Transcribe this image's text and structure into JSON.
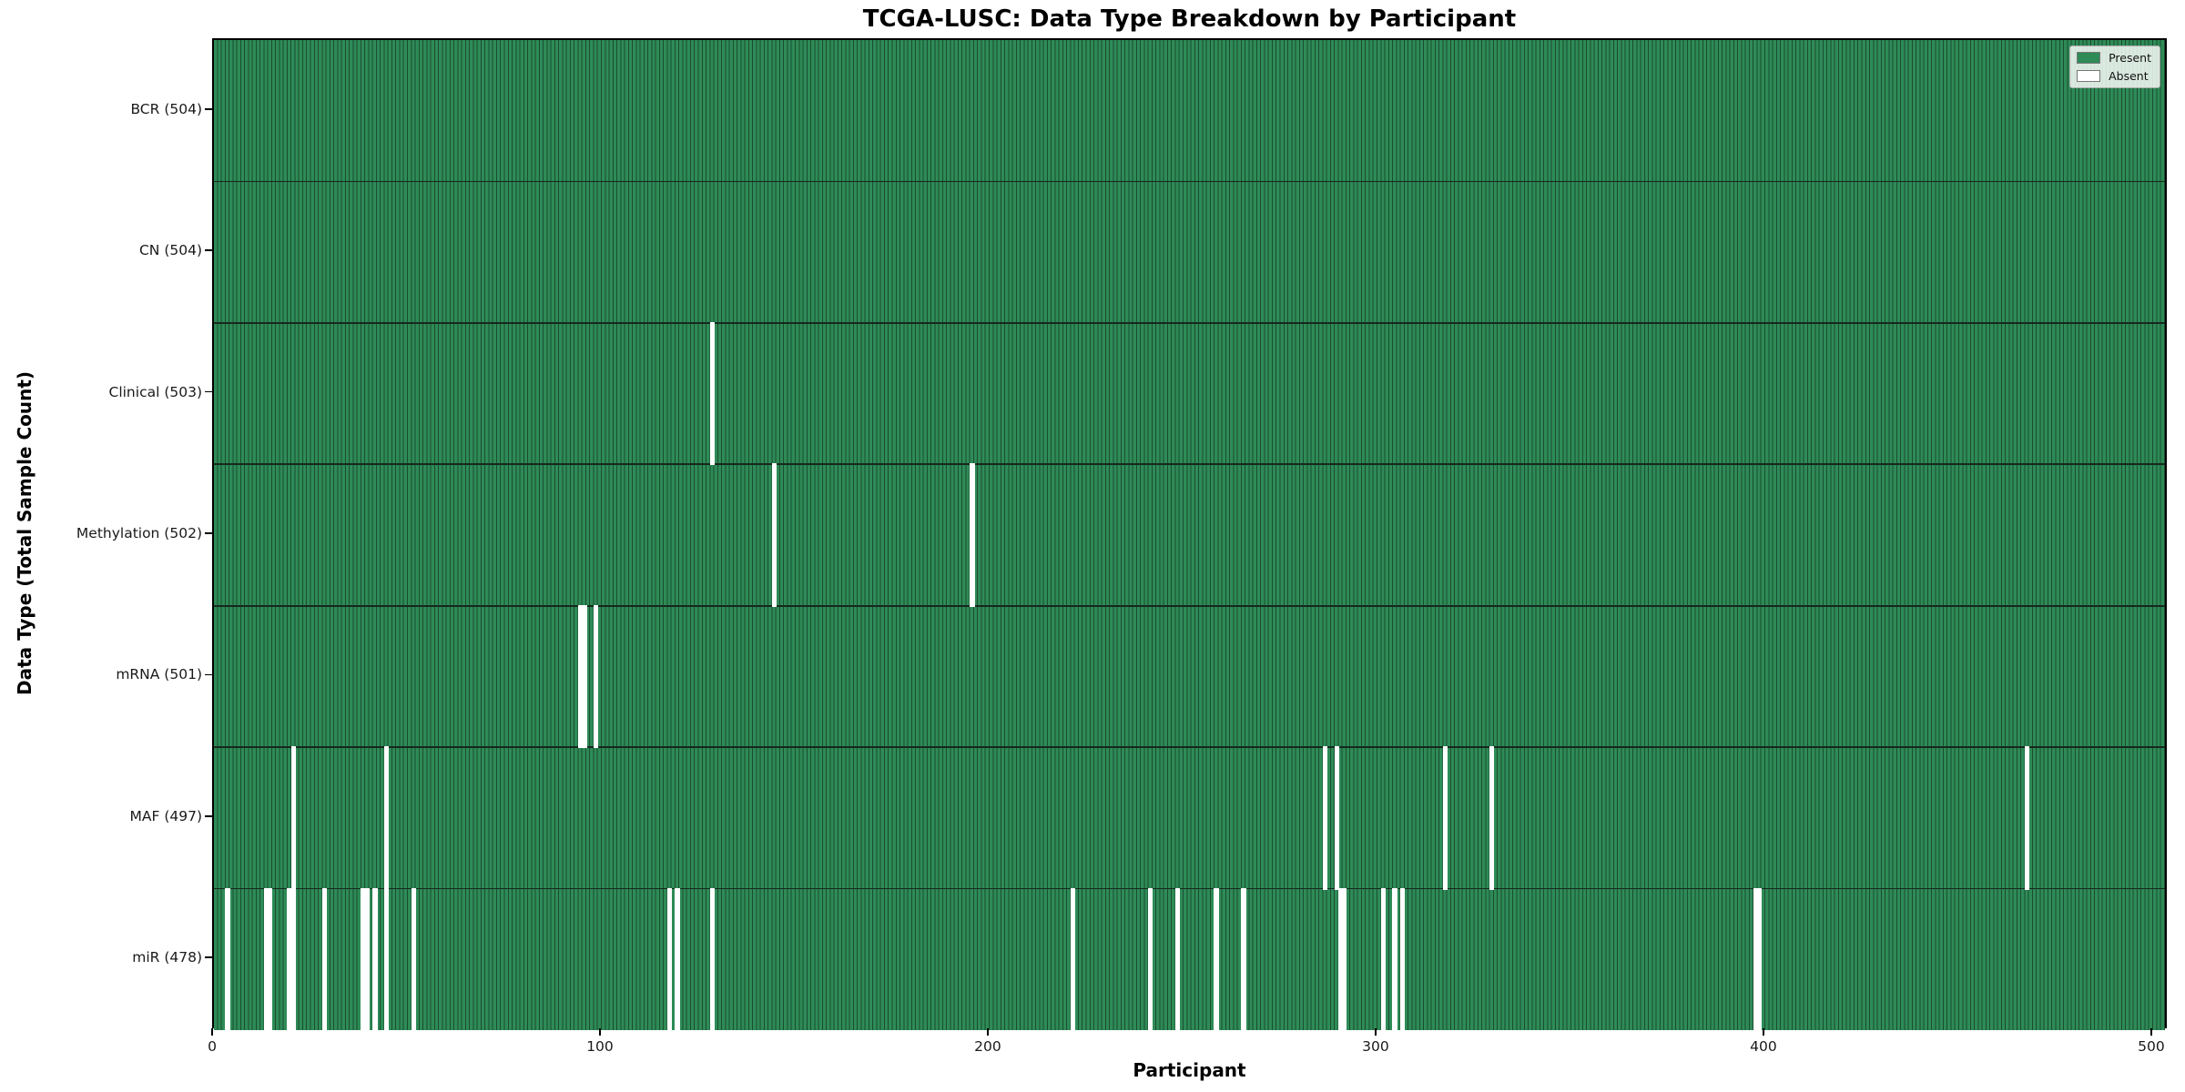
{
  "chart_data": {
    "type": "heatmap",
    "title": "TCGA-LUSC: Data Type Breakdown by Participant",
    "xlabel": "Participant",
    "ylabel": "Data Type (Total Sample Count)",
    "x_range": [
      0,
      504
    ],
    "x_ticks": [
      0,
      100,
      200,
      300,
      400,
      500
    ],
    "n_participants": 504,
    "grid": false,
    "legend_position": "upper right",
    "legend_entries": [
      {
        "label": "Present",
        "color": "#2e8b57"
      },
      {
        "label": "Absent",
        "color": "#ffffff"
      }
    ],
    "colors": {
      "present": "#2e8b57",
      "present_edge": "#1b4d31",
      "absent": "#ffffff"
    },
    "rows": [
      {
        "name": "BCR",
        "label": "BCR (504)",
        "total": 504,
        "absent": []
      },
      {
        "name": "CN",
        "label": "CN (504)",
        "total": 504,
        "absent": []
      },
      {
        "name": "Clinical",
        "label": "Clinical (503)",
        "total": 503,
        "absent": [
          128
        ]
      },
      {
        "name": "Methylation",
        "label": "Methylation (502)",
        "total": 502,
        "absent": [
          144,
          195
        ]
      },
      {
        "name": "mRNA",
        "label": "mRNA (501)",
        "total": 501,
        "absent": [
          94,
          95,
          98
        ]
      },
      {
        "name": "MAF",
        "label": "MAF (497)",
        "total": 497,
        "absent": [
          20,
          44,
          286,
          289,
          317,
          329,
          467
        ]
      },
      {
        "name": "miR",
        "label": "miR (478)",
        "total": 478,
        "absent": [
          3,
          13,
          14,
          19,
          20,
          28,
          38,
          39,
          41,
          44,
          51,
          117,
          119,
          128,
          221,
          241,
          248,
          258,
          265,
          290,
          291,
          301,
          304,
          306,
          397,
          398
        ]
      }
    ]
  }
}
